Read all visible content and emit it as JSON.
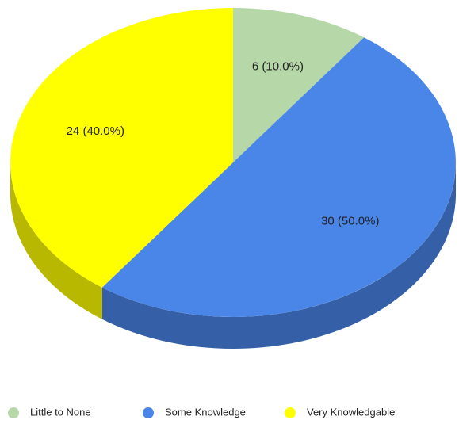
{
  "chart_data": {
    "type": "pie",
    "categories": [
      "Little to None",
      "Some Knowledge",
      "Very Knowledgable"
    ],
    "values": [
      6,
      30,
      24
    ],
    "value_labels": [
      "6 (10.0%)",
      "30 (50.0%)",
      "24 (40.0%)"
    ],
    "colors": [
      "#b6d7a8",
      "#4a86e8",
      "#ffff00"
    ],
    "legend": "bottom"
  }
}
